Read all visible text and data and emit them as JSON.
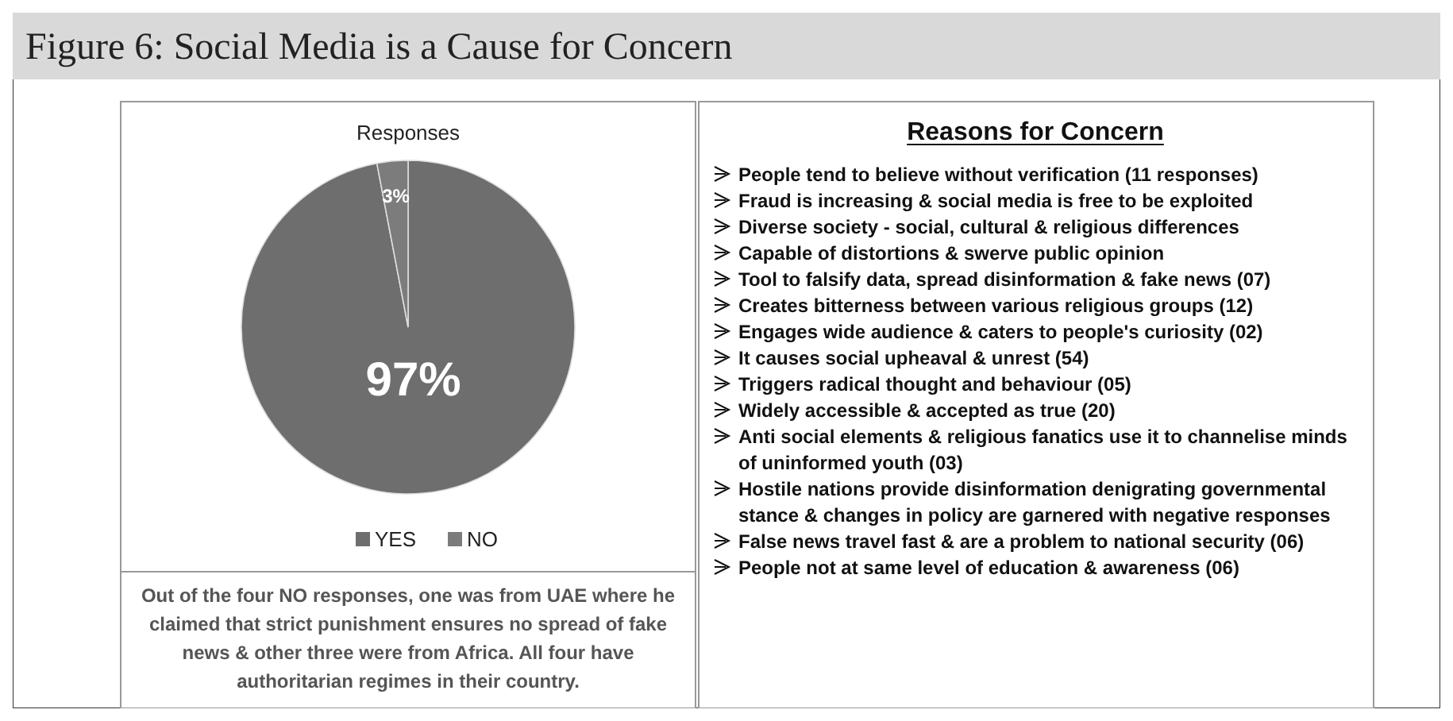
{
  "chart_data": [
    {
      "type": "other",
      "title": "Figure 6: Social Media is a Cause for Concern"
    },
    {
      "type": "pie",
      "title": "Responses",
      "categories": [
        "YES",
        "NO"
      ],
      "values": [
        97,
        3
      ],
      "colors": [
        "#6e6e6e",
        "#7c7c7c"
      ],
      "value_labels": [
        "97%",
        "3%"
      ],
      "legend": "bottom",
      "annotations": [
        "Out of the four NO responses, one was from UAE where he claimed that strict punishment ensures no spread of fake news & other three were from Africa. All four have authoritarian regimes in their country."
      ]
    },
    {
      "type": "other",
      "title": "Reasons for Concern",
      "annotations": [
        "People tend to believe without verification (11 responses)",
        "Fraud is increasing & social media is free to be exploited",
        "Diverse society - social, cultural & religious differences",
        "Capable of distortions & swerve public opinion",
        "Tool to falsify data, spread disinformation & fake news (07)",
        "Creates bitterness between various religious groups (12)",
        "Engages wide audience & caters to people's curiosity (02)",
        "It causes social upheaval & unrest (54)",
        "Triggers radical thought and behaviour (05)",
        "Widely accessible & accepted as true (20)",
        "Anti social elements & religious fanatics use it to channelise minds of uninformed youth (03)",
        "Hostile nations provide disinformation denigrating governmental stance & changes in policy are garnered with negative responses",
        "False news travel fast & are a problem to national security (06)",
        "People not at same level of education & awareness (06)"
      ]
    }
  ]
}
